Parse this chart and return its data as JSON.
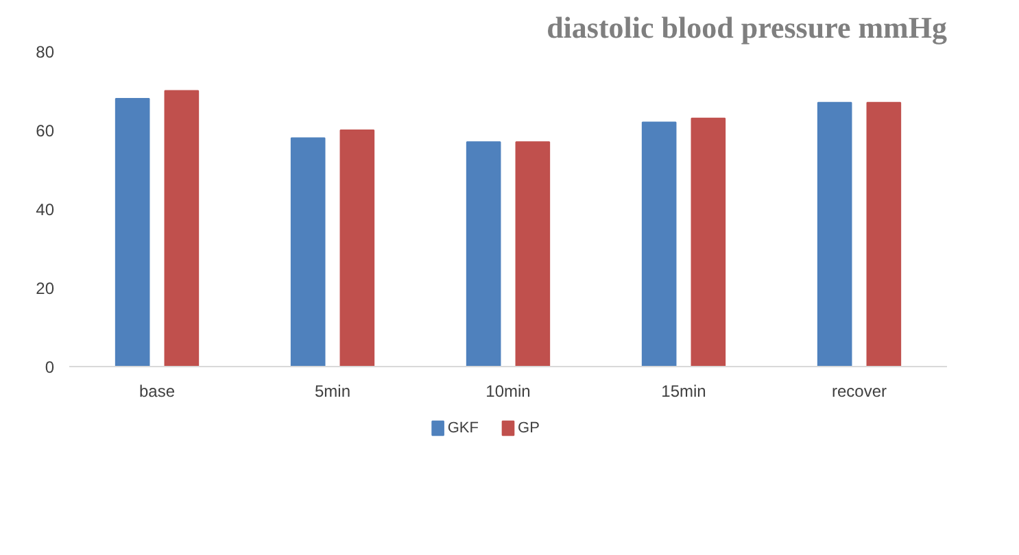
{
  "chart_data": {
    "type": "bar",
    "title": "diastolic blood pressure mmHg",
    "categories": [
      "base",
      "5min",
      "10min",
      "15min",
      "recover"
    ],
    "series": [
      {
        "name": "GKF",
        "color": "#4f81bd",
        "values": [
          68,
          58,
          57,
          62,
          67
        ]
      },
      {
        "name": "GP",
        "color": "#c0504d",
        "values": [
          70,
          60,
          57,
          63,
          67
        ]
      }
    ],
    "ylim": [
      0,
      80
    ],
    "yticks": [
      0,
      20,
      40,
      60,
      80
    ],
    "grid": false,
    "legend": "bottom"
  }
}
